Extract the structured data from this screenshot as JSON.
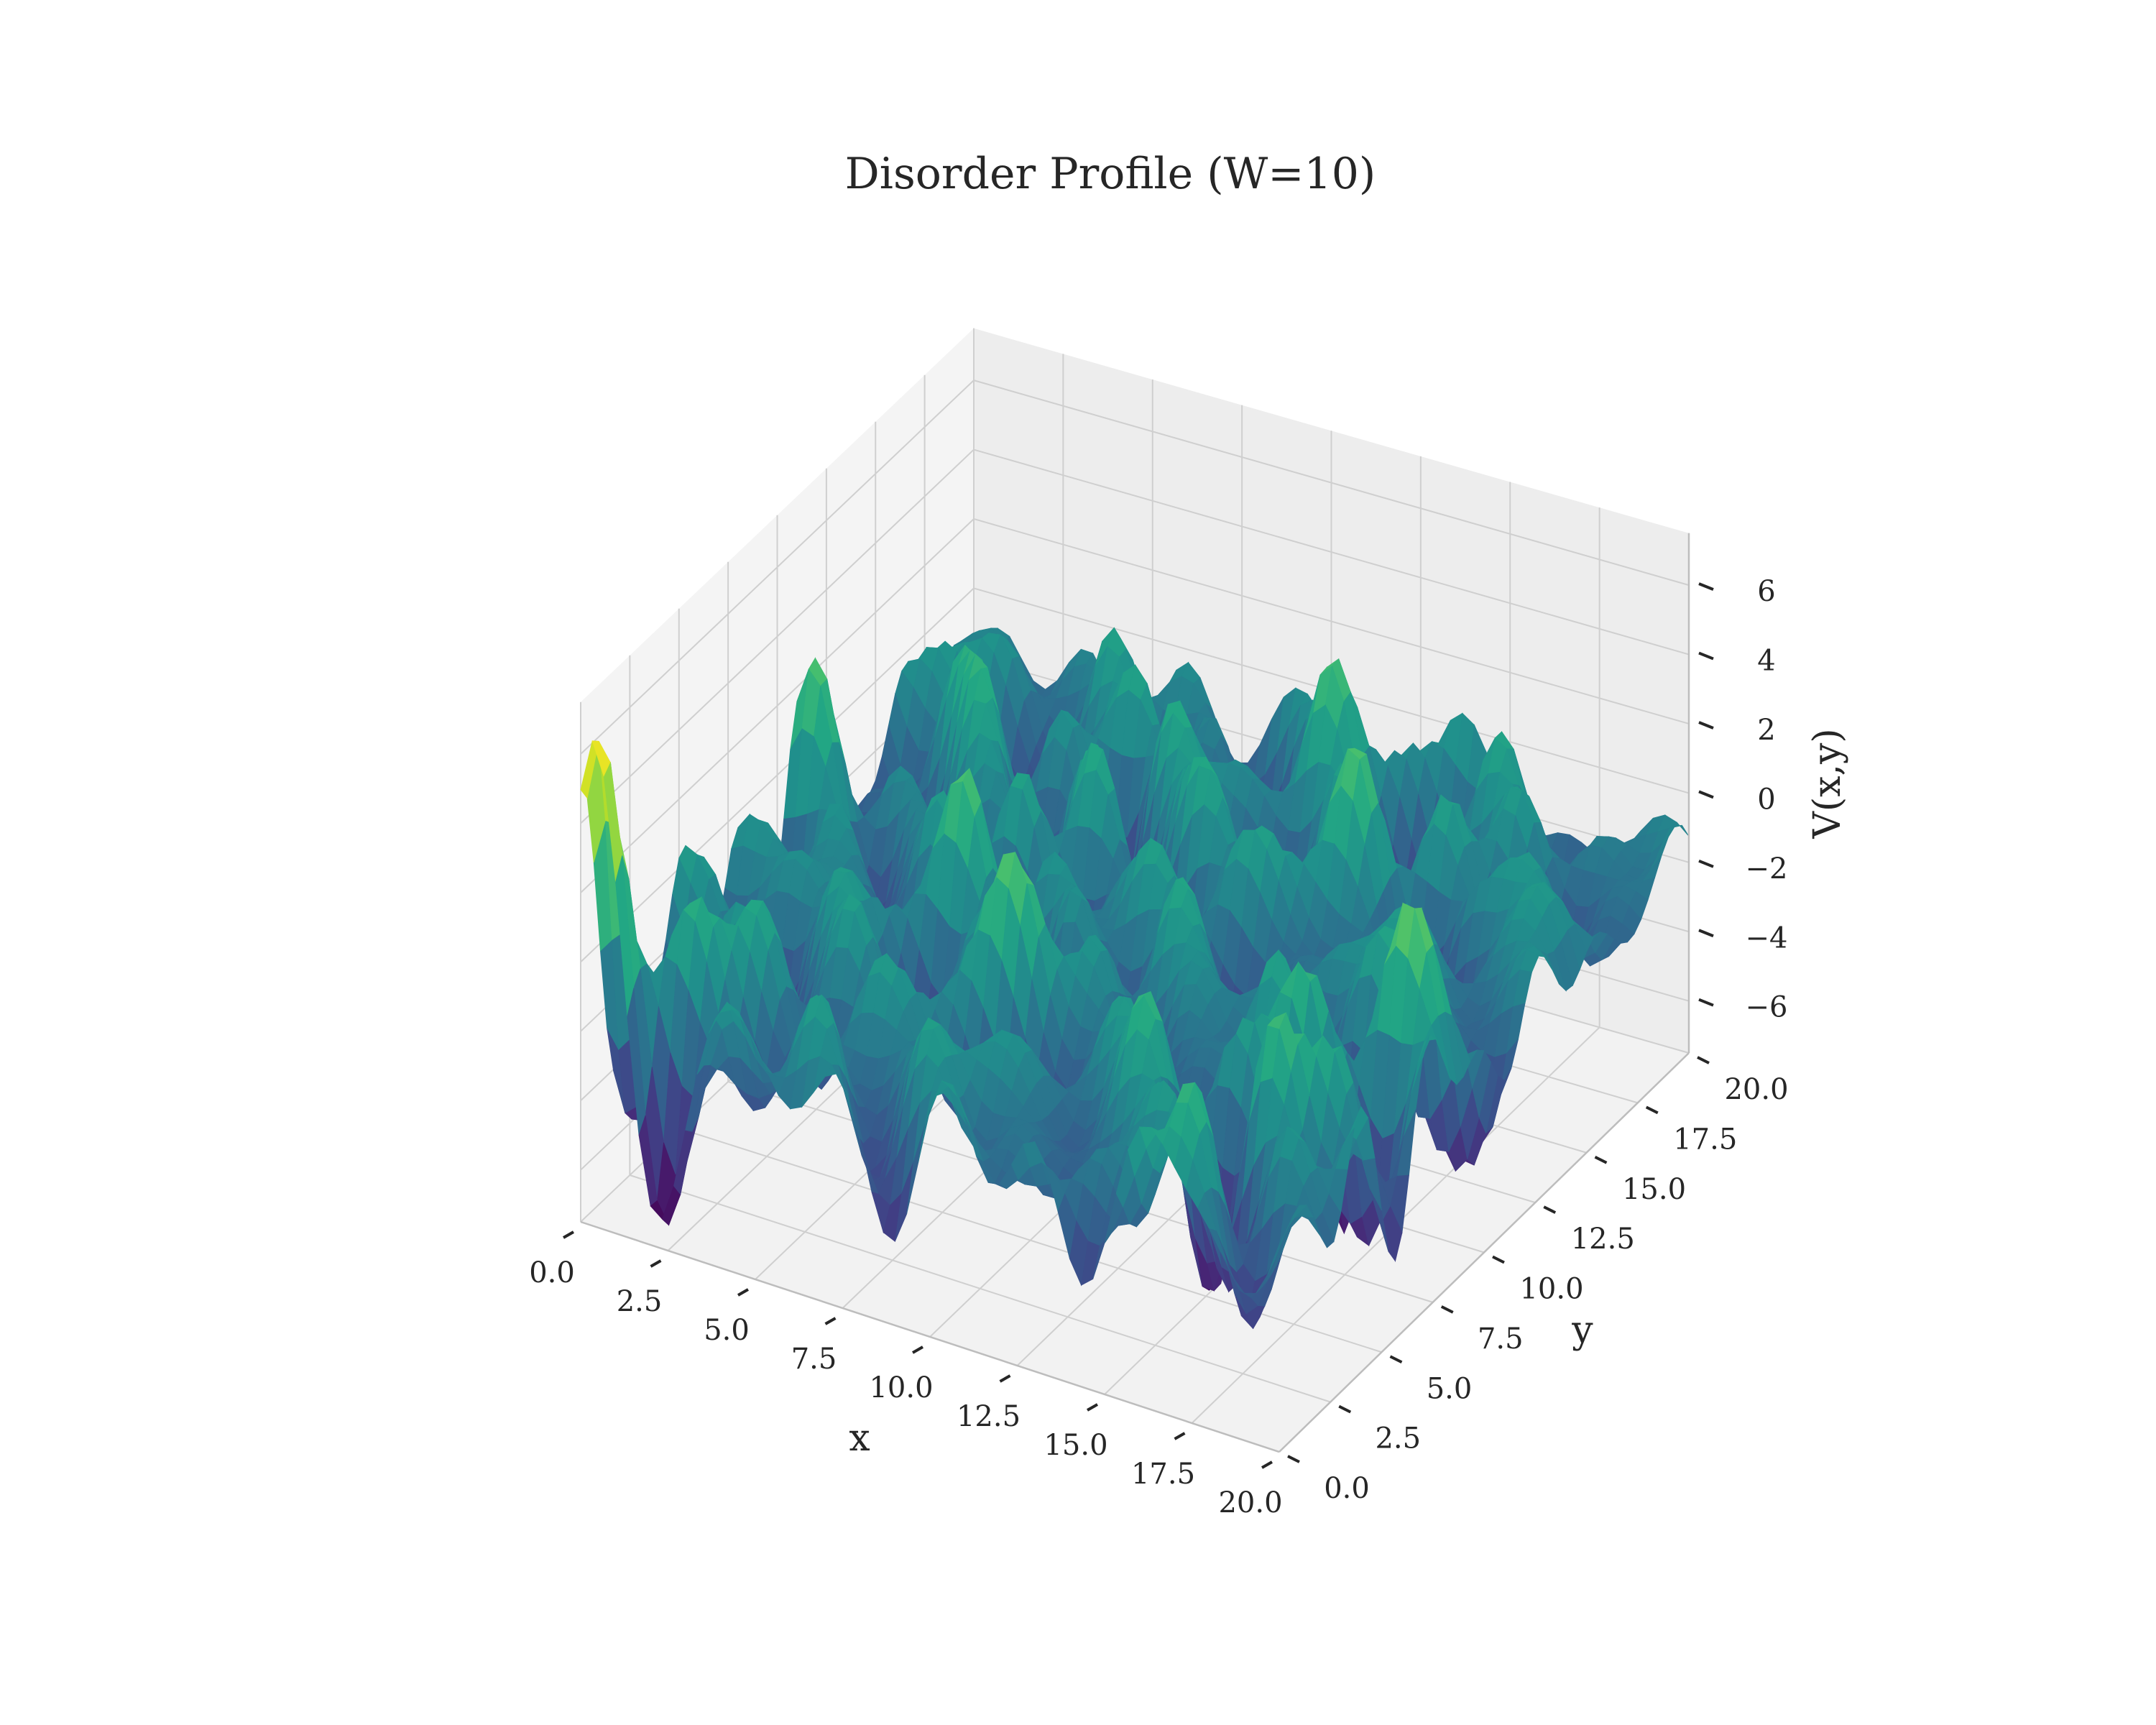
{
  "chart_data": {
    "type": "surface",
    "title": "Disorder Profile (W=10)",
    "xlabel": "x",
    "ylabel": "y",
    "zlabel": "V(x,y)",
    "xlim": [
      0,
      20
    ],
    "ylim": [
      0,
      20
    ],
    "zlim": [
      -7.5,
      7.5
    ],
    "x_ticks": [
      "0.0",
      "2.5",
      "5.0",
      "7.5",
      "10.0",
      "12.5",
      "15.0",
      "17.5",
      "20.0"
    ],
    "y_ticks": [
      "0.0",
      "2.5",
      "5.0",
      "7.5",
      "10.0",
      "12.5",
      "15.0",
      "17.5",
      "20.0"
    ],
    "z_ticks": [
      "−6",
      "−4",
      "−2",
      "0",
      "2",
      "4",
      "6"
    ],
    "z_tick_values": [
      -6,
      -4,
      -2,
      0,
      2,
      4,
      6
    ],
    "colormap": "viridis",
    "z_range_shown": [
      -7,
      6.5
    ],
    "grid": true
  }
}
